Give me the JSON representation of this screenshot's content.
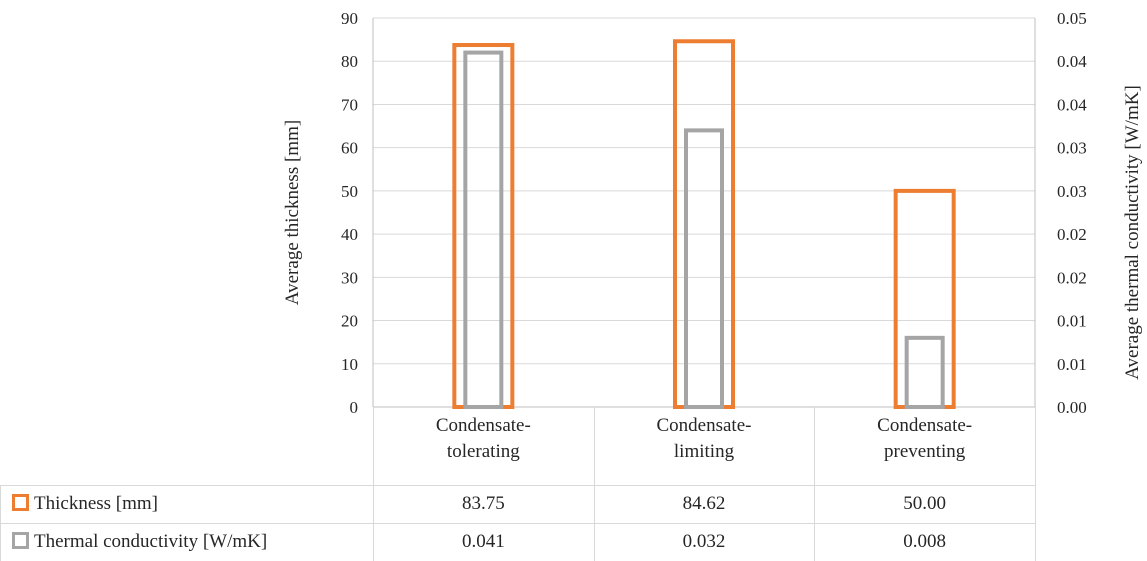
{
  "chart_data": {
    "type": "bar",
    "categories": [
      [
        "Condensate-",
        "tolerating"
      ],
      [
        "Condensate-",
        "limiting"
      ],
      [
        "Condensate-",
        "preventing"
      ]
    ],
    "series": [
      {
        "name": "Thickness [mm]",
        "axis": "left",
        "color": "#ED7D31",
        "values": [
          83.75,
          84.62,
          50.0
        ],
        "labels": [
          "83.75",
          "84.62",
          "50.00"
        ]
      },
      {
        "name": "Thermal conductivity [W/mK]",
        "axis": "right",
        "color": "#A5A5A5",
        "values": [
          0.041,
          0.032,
          0.008
        ],
        "labels": [
          "0.041",
          "0.032",
          "0.008"
        ]
      }
    ],
    "ylabel": "Average thickness [mm]",
    "y2label": "Average thermal conductivity [W/mK]",
    "ylim": [
      0,
      90
    ],
    "y2lim": [
      0,
      0.045
    ],
    "yticks": [
      "0",
      "10",
      "20",
      "30",
      "40",
      "50",
      "60",
      "70",
      "80",
      "90"
    ],
    "y2ticks": [
      "0.00",
      "0.01",
      "0.01",
      "0.02",
      "0.02",
      "0.03",
      "0.03",
      "0.04",
      "0.04",
      "0.05"
    ],
    "grid": true,
    "legend": "data-table"
  }
}
